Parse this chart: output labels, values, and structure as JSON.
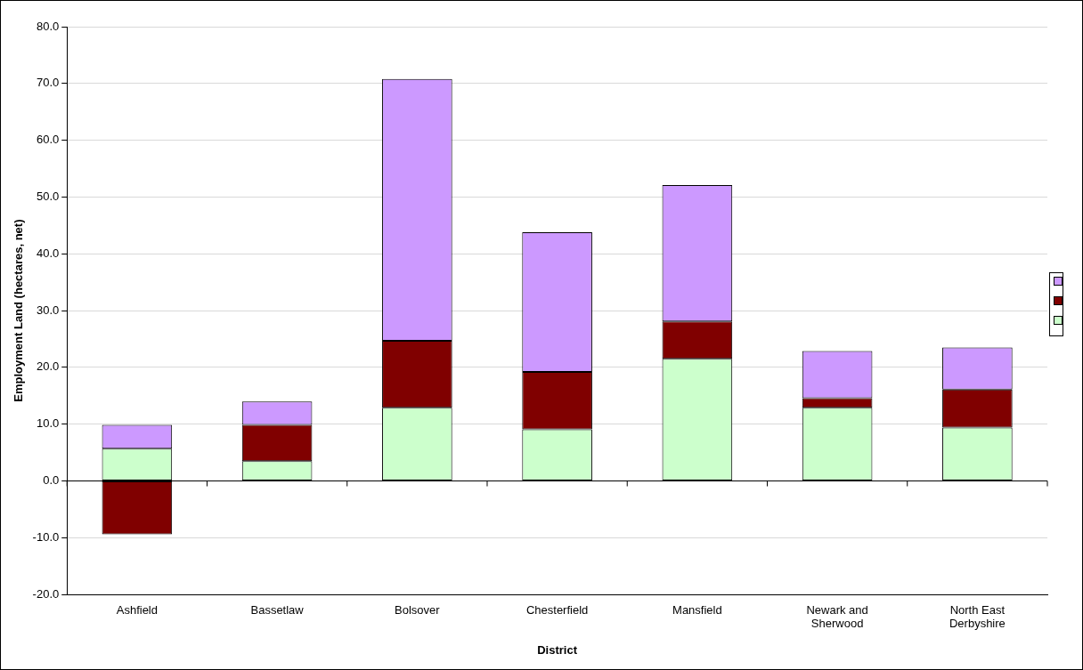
{
  "chart_data": {
    "type": "bar",
    "stacked": true,
    "xlabel": "District",
    "ylabel": "Employment Land (hectares, net)",
    "categories": [
      "Ashfield",
      "Bassetlaw",
      "Bolsover",
      "Chesterfield",
      "Mansfield",
      "Newark and Sherwood",
      "North East Derbyshire"
    ],
    "series": [
      {
        "color": "#ccffcc",
        "values": [
          5.7,
          3.5,
          12.9,
          9.1,
          21.5,
          12.9,
          9.4
        ]
      },
      {
        "color": "#800000",
        "values": [
          -9.4,
          6.4,
          11.8,
          10.1,
          6.6,
          1.7,
          6.7
        ]
      },
      {
        "color": "#cc99ff",
        "values": [
          4.2,
          4.1,
          46.1,
          24.6,
          24.0,
          8.3,
          7.4
        ]
      }
    ],
    "ylim": [
      -20,
      80
    ],
    "yticks": [
      {
        "value": -20,
        "label": "-20.0"
      },
      {
        "value": -10,
        "label": "-10.0"
      },
      {
        "value": 0,
        "label": "0.0"
      },
      {
        "value": 10,
        "label": "10.0"
      },
      {
        "value": 20,
        "label": "20.0"
      },
      {
        "value": 30,
        "label": "30.0"
      },
      {
        "value": 40,
        "label": "40.0"
      },
      {
        "value": 50,
        "label": "50.0"
      },
      {
        "value": 60,
        "label": "60.0"
      },
      {
        "value": 70,
        "label": "70.0"
      },
      {
        "value": 80,
        "label": "80.0"
      }
    ],
    "grid": "y"
  }
}
